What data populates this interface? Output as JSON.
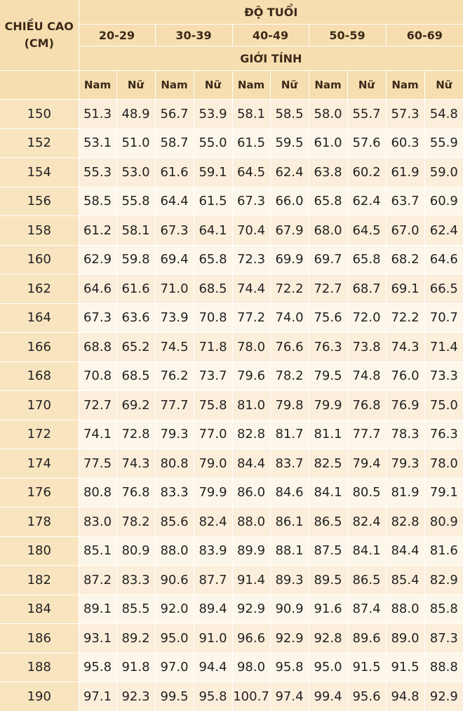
{
  "header": {
    "height_label_line1": "CHIỀU CAO",
    "height_label_line2": "(CM)",
    "age_label": "ĐỘ TUỔI",
    "gender_label": "GIỚI TÍNH",
    "age_groups": [
      "20-29",
      "30-39",
      "40-49",
      "50-59",
      "60-69"
    ],
    "male": "Nam",
    "female": "Nữ"
  },
  "rows": [
    {
      "h": "150",
      "v": [
        "51.3",
        "48.9",
        "56.7",
        "53.9",
        "58.1",
        "58.5",
        "58.0",
        "55.7",
        "57.3",
        "54.8"
      ]
    },
    {
      "h": "152",
      "v": [
        "53.1",
        "51.0",
        "58.7",
        "55.0",
        "61.5",
        "59.5",
        "61.0",
        "57.6",
        "60.3",
        "55.9"
      ]
    },
    {
      "h": "154",
      "v": [
        "55.3",
        "53.0",
        "61.6",
        "59.1",
        "64.5",
        "62.4",
        "63.8",
        "60.2",
        "61.9",
        "59.0"
      ]
    },
    {
      "h": "156",
      "v": [
        "58.5",
        "55.8",
        "64.4",
        "61.5",
        "67.3",
        "66.0",
        "65.8",
        "62.4",
        "63.7",
        "60.9"
      ]
    },
    {
      "h": "158",
      "v": [
        "61.2",
        "58.1",
        "67.3",
        "64.1",
        "70.4",
        "67.9",
        "68.0",
        "64.5",
        "67.0",
        "62.4"
      ]
    },
    {
      "h": "160",
      "v": [
        "62.9",
        "59.8",
        "69.4",
        "65.8",
        "72.3",
        "69.9",
        "69.7",
        "65.8",
        "68.2",
        "64.6"
      ]
    },
    {
      "h": "162",
      "v": [
        "64.6",
        "61.6",
        "71.0",
        "68.5",
        "74.4",
        "72.2",
        "72.7",
        "68.7",
        "69.1",
        "66.5"
      ]
    },
    {
      "h": "164",
      "v": [
        "67.3",
        "63.6",
        "73.9",
        "70.8",
        "77.2",
        "74.0",
        "75.6",
        "72.0",
        "72.2",
        "70.7"
      ]
    },
    {
      "h": "166",
      "v": [
        "68.8",
        "65.2",
        "74.5",
        "71.8",
        "78.0",
        "76.6",
        "76.3",
        "73.8",
        "74.3",
        "71.4"
      ]
    },
    {
      "h": "168",
      "v": [
        "70.8",
        "68.5",
        "76.2",
        "73.7",
        "79.6",
        "78.2",
        "79.5",
        "74.8",
        "76.0",
        "73.3"
      ]
    },
    {
      "h": "170",
      "v": [
        "72.7",
        "69.2",
        "77.7",
        "75.8",
        "81.0",
        "79.8",
        "79.9",
        "76.8",
        "76.9",
        "75.0"
      ]
    },
    {
      "h": "172",
      "v": [
        "74.1",
        "72.8",
        "79.3",
        "77.0",
        "82.8",
        "81.7",
        "81.1",
        "77.7",
        "78.3",
        "76.3"
      ]
    },
    {
      "h": "174",
      "v": [
        "77.5",
        "74.3",
        "80.8",
        "79.0",
        "84.4",
        "83.7",
        "82.5",
        "79.4",
        "79.3",
        "78.0"
      ]
    },
    {
      "h": "176",
      "v": [
        "80.8",
        "76.8",
        "83.3",
        "79.9",
        "86.0",
        "84.6",
        "84.1",
        "80.5",
        "81.9",
        "79.1"
      ]
    },
    {
      "h": "178",
      "v": [
        "83.0",
        "78.2",
        "85.6",
        "82.4",
        "88.0",
        "86.1",
        "86.5",
        "82.4",
        "82.8",
        "80.9"
      ]
    },
    {
      "h": "180",
      "v": [
        "85.1",
        "80.9",
        "88.0",
        "83.9",
        "89.9",
        "88.1",
        "87.5",
        "84.1",
        "84.4",
        "81.6"
      ]
    },
    {
      "h": "182",
      "v": [
        "87.2",
        "83.3",
        "90.6",
        "87.7",
        "91.4",
        "89.3",
        "89.5",
        "86.5",
        "85.4",
        "82.9"
      ]
    },
    {
      "h": "184",
      "v": [
        "89.1",
        "85.5",
        "92.0",
        "89.4",
        "92.9",
        "90.9",
        "91.6",
        "87.4",
        "88.0",
        "85.8"
      ]
    },
    {
      "h": "186",
      "v": [
        "93.1",
        "89.2",
        "95.0",
        "91.0",
        "96.6",
        "92.9",
        "92.8",
        "89.6",
        "89.0",
        "87.3"
      ]
    },
    {
      "h": "188",
      "v": [
        "95.8",
        "91.8",
        "97.0",
        "94.4",
        "98.0",
        "95.8",
        "95.0",
        "91.5",
        "91.5",
        "88.8"
      ]
    },
    {
      "h": "190",
      "v": [
        "97.1",
        "92.3",
        "99.5",
        "95.8",
        "100.7",
        "97.4",
        "99.4",
        "95.6",
        "94.8",
        "92.9"
      ]
    }
  ]
}
